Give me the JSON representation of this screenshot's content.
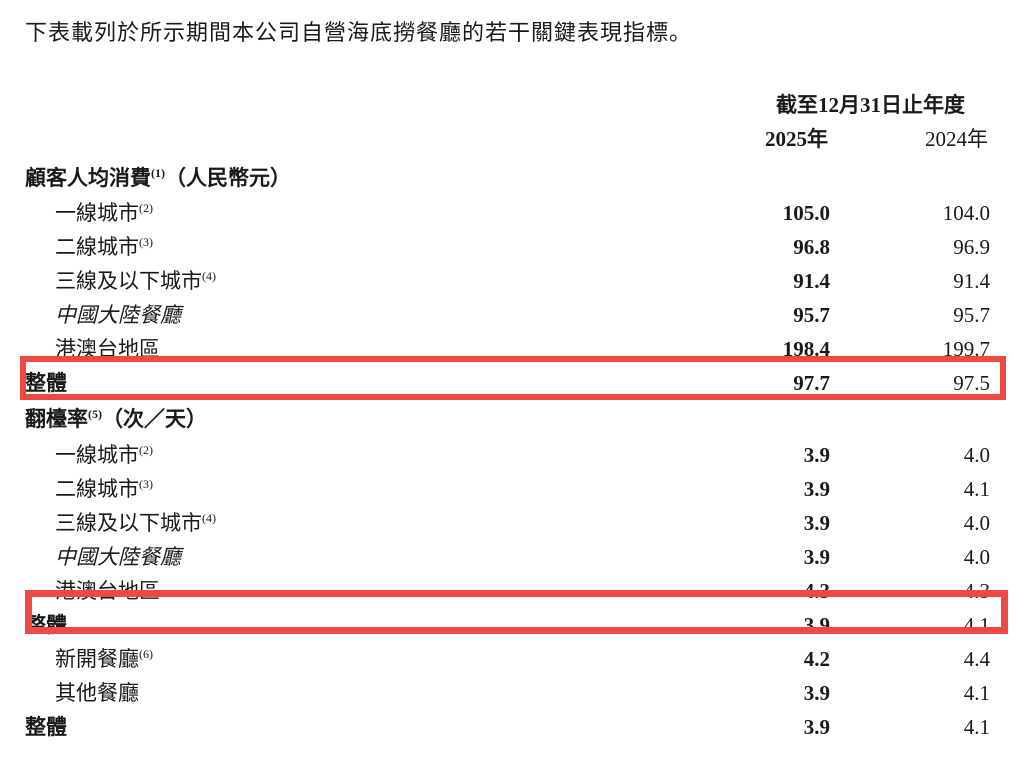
{
  "intro": "下表載列於所示期間本公司自營海底撈餐廳的若干關鍵表現指標。",
  "table": {
    "period_header": "截至12月31日止年度",
    "col_2025": "2025年",
    "col_2024": "2024年",
    "sections": [
      {
        "title": "顧客人均消費",
        "title_sup": "(1)",
        "title_suffix": "（人民幣元）",
        "rows": [
          {
            "label": "一線城市",
            "sup": "(2)",
            "v2025": "105.0",
            "v2024": "104.0"
          },
          {
            "label": "二線城市",
            "sup": "(3)",
            "v2025": "96.8",
            "v2024": "96.9"
          },
          {
            "label": "三線及以下城市",
            "sup": "(4)",
            "v2025": "91.4",
            "v2024": "91.4"
          },
          {
            "label": "中國大陸餐廳",
            "v2025": "95.7",
            "v2024": "95.7"
          },
          {
            "label": "港澳台地區",
            "v2025": "198.4",
            "v2024": "199.7"
          },
          {
            "label": "整體",
            "v2025": "97.7",
            "v2024": "97.5"
          }
        ]
      },
      {
        "title": "翻檯率",
        "title_sup": "(5)",
        "title_suffix": "（次／天）",
        "rows": [
          {
            "label": "一線城市",
            "sup": "(2)",
            "v2025": "3.9",
            "v2024": "4.0"
          },
          {
            "label": "二線城市",
            "sup": "(3)",
            "v2025": "3.9",
            "v2024": "4.1"
          },
          {
            "label": "三線及以下城市",
            "sup": "(4)",
            "v2025": "3.9",
            "v2024": "4.0"
          },
          {
            "label": "中國大陸餐廳",
            "v2025": "3.9",
            "v2024": "4.0"
          },
          {
            "label": "港澳台地區",
            "v2025": "4.3",
            "v2024": "4.3"
          },
          {
            "label": "整體",
            "v2025": "3.9",
            "v2024": "4.1"
          },
          {
            "label": "新開餐廳",
            "sup": "(6)",
            "v2025": "4.2",
            "v2024": "4.4"
          },
          {
            "label": "其他餐廳",
            "v2025": "3.9",
            "v2024": "4.1"
          },
          {
            "label": "整體",
            "v2025": "3.9",
            "v2024": "4.1"
          }
        ]
      }
    ]
  },
  "annotations": {
    "highlight_color": "#ee4a43"
  }
}
